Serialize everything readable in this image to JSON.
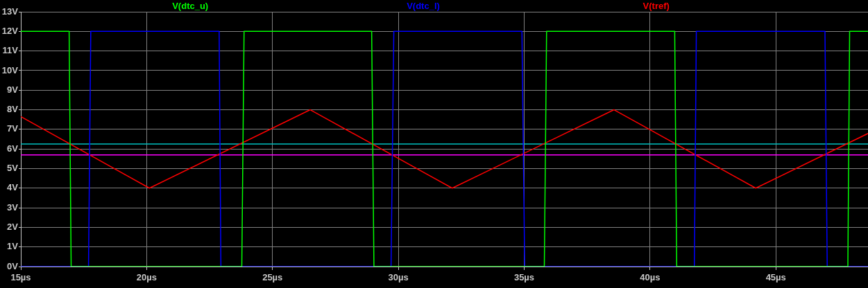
{
  "chart_data": {
    "type": "line",
    "legend": "top",
    "grid": true,
    "marker": "none",
    "line_style": "solid",
    "xlim": [
      15,
      48.66
    ],
    "ylim": [
      0,
      13
    ],
    "xticks": [
      {
        "value": 15,
        "label": "15µs"
      },
      {
        "value": 20,
        "label": "20µs"
      },
      {
        "value": 25,
        "label": "25µs"
      },
      {
        "value": 30,
        "label": "30µs"
      },
      {
        "value": 35,
        "label": "35µs"
      },
      {
        "value": 40,
        "label": "40µs"
      },
      {
        "value": 45,
        "label": "45µs"
      }
    ],
    "yticks": [
      {
        "value": 0,
        "label": "0V"
      },
      {
        "value": 1,
        "label": "1V"
      },
      {
        "value": 2,
        "label": "2V"
      },
      {
        "value": 3,
        "label": "3V"
      },
      {
        "value": 4,
        "label": "4V"
      },
      {
        "value": 5,
        "label": "5V"
      },
      {
        "value": 6,
        "label": "6V"
      },
      {
        "value": 7,
        "label": "7V"
      },
      {
        "value": 8,
        "label": "8V"
      },
      {
        "value": 9,
        "label": "9V"
      },
      {
        "value": 10,
        "label": "10V"
      },
      {
        "value": 11,
        "label": "11V"
      },
      {
        "value": 12,
        "label": "12V"
      },
      {
        "value": 13,
        "label": "13V"
      }
    ],
    "series": [
      {
        "name": "V(dtc_u)",
        "color": "#00ff00",
        "x": [
          15,
          16.92,
          17.0,
          23.78,
          23.87,
          28.94,
          29.03,
          35.8,
          35.89,
          40.98,
          41.06,
          47.86,
          47.93,
          48.66
        ],
        "values": [
          12,
          12,
          0,
          0,
          12,
          12,
          0,
          0,
          12,
          12,
          0,
          0,
          12,
          12
        ]
      },
      {
        "name": "V(dtc_l)",
        "color": "#0000ff",
        "x": [
          15,
          17.69,
          17.78,
          22.88,
          22.95,
          29.71,
          29.82,
          34.91,
          35.02,
          41.76,
          41.84,
          46.95,
          47.04,
          48.66
        ],
        "values": [
          0,
          0,
          12,
          12,
          0,
          0,
          12,
          12,
          0,
          0,
          12,
          12,
          0,
          0
        ]
      },
      {
        "name": "V(tref)",
        "color": "#ff0000",
        "x": [
          15,
          20.11,
          26.5,
          32.14,
          38.57,
          44.2,
          48.66
        ],
        "values": [
          7.65,
          4,
          8,
          4,
          8,
          4,
          6.79
        ]
      }
    ],
    "ref_lines": [
      {
        "axis": "y",
        "value": 6.25,
        "color": "#00c0c0"
      },
      {
        "axis": "y",
        "value": 5.7,
        "color": "#ff00ff"
      }
    ]
  }
}
